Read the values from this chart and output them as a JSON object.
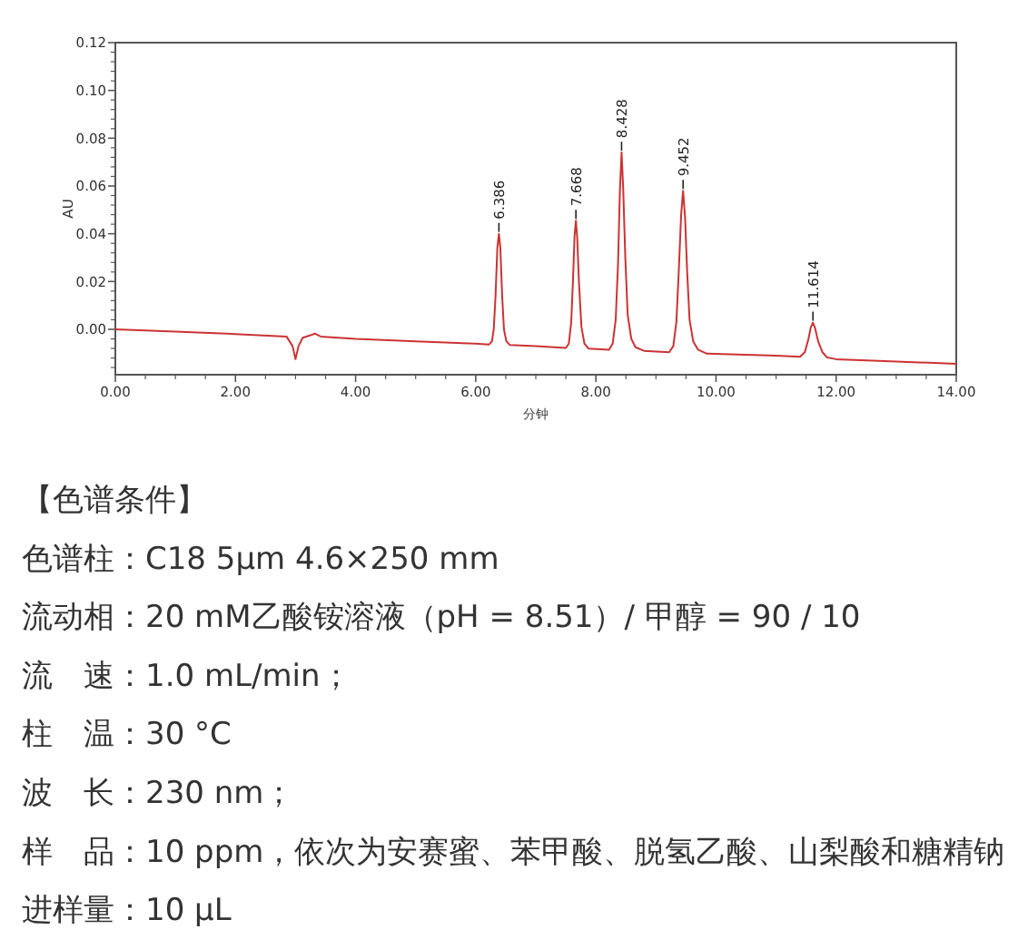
{
  "chart_data": {
    "type": "line",
    "color": "#cc3333",
    "xlabel": "分钟",
    "ylabel": "AU",
    "xlim": [
      0,
      14
    ],
    "ylim": [
      -0.019,
      0.12
    ],
    "xticks": [
      {
        "value": 0,
        "label": "0.00"
      },
      {
        "value": 2,
        "label": "2.00"
      },
      {
        "value": 4,
        "label": "4.00"
      },
      {
        "value": 6,
        "label": "6.00"
      },
      {
        "value": 8,
        "label": "8.00"
      },
      {
        "value": 10,
        "label": "10.00"
      },
      {
        "value": 12,
        "label": "12.00"
      },
      {
        "value": 14,
        "label": "14.00"
      }
    ],
    "yticks": [
      {
        "value": 0,
        "label": "0.00"
      },
      {
        "value": 0.02,
        "label": "0.02"
      },
      {
        "value": 0.04,
        "label": "0.04"
      },
      {
        "value": 0.06,
        "label": "0.06"
      },
      {
        "value": 0.08,
        "label": "0.08"
      },
      {
        "value": 0.1,
        "label": "0.10"
      },
      {
        "value": 0.12,
        "label": "0.12"
      }
    ],
    "x": [
      0,
      1,
      2,
      2.85,
      2.95,
      3,
      3.05,
      3.12,
      3.25,
      3.32,
      3.42,
      4,
      5,
      6,
      6.22,
      6.27,
      6.3,
      6.33,
      6.36,
      6.386,
      6.41,
      6.44,
      6.47,
      6.51,
      6.57,
      7,
      7.5,
      7.55,
      7.59,
      7.62,
      7.645,
      7.668,
      7.69,
      7.72,
      7.76,
      7.81,
      7.88,
      8.22,
      8.28,
      8.33,
      8.37,
      8.4,
      8.428,
      8.455,
      8.49,
      8.53,
      8.59,
      8.66,
      8.8,
      9.22,
      9.29,
      9.34,
      9.38,
      9.42,
      9.452,
      9.485,
      9.52,
      9.56,
      9.62,
      9.7,
      9.85,
      11,
      11.4,
      11.48,
      11.54,
      11.58,
      11.614,
      11.65,
      11.7,
      11.77,
      11.85,
      12,
      13,
      14
    ],
    "values": [
      0,
      -0.001,
      -0.002,
      -0.003,
      -0.007,
      -0.0125,
      -0.007,
      -0.0035,
      -0.0025,
      -0.0018,
      -0.003,
      -0.004,
      -0.005,
      -0.006,
      -0.0064,
      -0.005,
      0,
      0.014,
      0.034,
      0.04,
      0.034,
      0.014,
      0,
      -0.005,
      -0.0066,
      -0.007,
      -0.0078,
      -0.006,
      0.003,
      0.021,
      0.039,
      0.0455,
      0.038,
      0.019,
      0.001,
      -0.006,
      -0.0081,
      -0.0086,
      -0.006,
      0.004,
      0.028,
      0.058,
      0.074,
      0.059,
      0.03,
      0.006,
      -0.004,
      -0.0075,
      -0.009,
      -0.0096,
      -0.007,
      0.003,
      0.024,
      0.048,
      0.058,
      0.047,
      0.024,
      0.004,
      -0.005,
      -0.0085,
      -0.0102,
      -0.011,
      -0.0115,
      -0.0095,
      -0.004,
      0.001,
      0.0028,
      0.0005,
      -0.005,
      -0.0095,
      -0.0118,
      -0.0125,
      -0.0135,
      -0.0144
    ],
    "annotations": [
      {
        "text": "6.386",
        "x": 6.386,
        "y": 0.04
      },
      {
        "text": "7.668",
        "x": 7.668,
        "y": 0.0455
      },
      {
        "text": "8.428",
        "x": 8.428,
        "y": 0.074
      },
      {
        "text": "9.452",
        "x": 9.452,
        "y": 0.058
      },
      {
        "text": "11.614",
        "x": 11.614,
        "y": 0.0028
      },
      "【色谱条件】",
      "色谱柱：C18 5µm  4.6×250 mm",
      "流动相：20 mM乙酸铵溶液（pH = 8.51）/ 甲醇 = 90 / 10",
      "流　速：1.0 mL/min；",
      "柱　温：30 °C",
      "波　长：230 nm；",
      "样　品：10 ppm，依次为安赛蜜、苯甲酸、脱氢乙酸、山梨酸和糖精钠",
      "进样量：10 µL"
    ]
  }
}
